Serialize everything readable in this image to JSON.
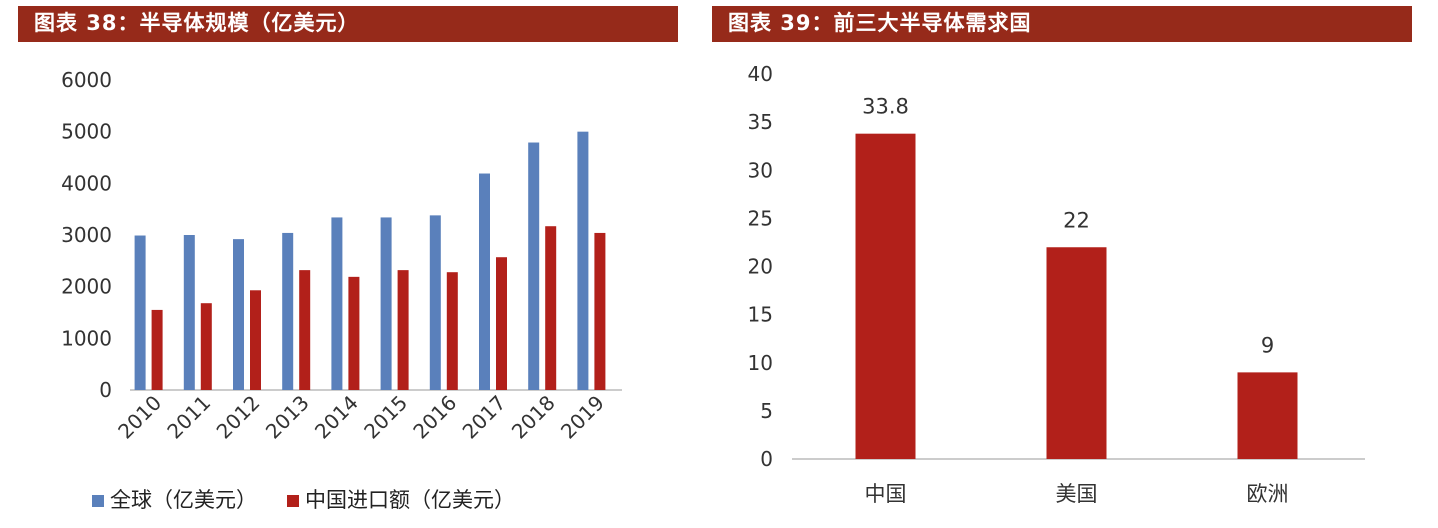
{
  "chart_data": [
    {
      "type": "bar",
      "title": "图表 38：半导体规模（亿美元）",
      "categories": [
        "2010",
        "2011",
        "2012",
        "2013",
        "2014",
        "2015",
        "2016",
        "2017",
        "2018",
        "2019"
      ],
      "series": [
        {
          "name": "全球（亿美元）",
          "color": "#5a80bb",
          "values": [
            2990,
            3000,
            2920,
            3040,
            3340,
            3340,
            3380,
            4190,
            4790,
            5000
          ]
        },
        {
          "name": "中国进口额（亿美元）",
          "color": "#b2201a",
          "values": [
            1550,
            1680,
            1930,
            2320,
            2190,
            2320,
            2280,
            2570,
            3170,
            3040
          ]
        }
      ],
      "yticks": [
        "0",
        "1000",
        "2000",
        "3000",
        "4000",
        "5000",
        "6000"
      ],
      "ylim": [
        0,
        6000
      ],
      "grid": false,
      "legend": "bottom"
    },
    {
      "type": "bar",
      "title": "图表 39：前三大半导体需求国",
      "categories": [
        "中国",
        "美国",
        "欧洲"
      ],
      "values": [
        33.8,
        22,
        9
      ],
      "labels": [
        "33.8",
        "22",
        "9"
      ],
      "color": "#b2201a",
      "yticks": [
        "0",
        "5",
        "10",
        "15",
        "20",
        "25",
        "30",
        "35",
        "40"
      ],
      "ylim": [
        0,
        40
      ],
      "grid": false
    }
  ]
}
